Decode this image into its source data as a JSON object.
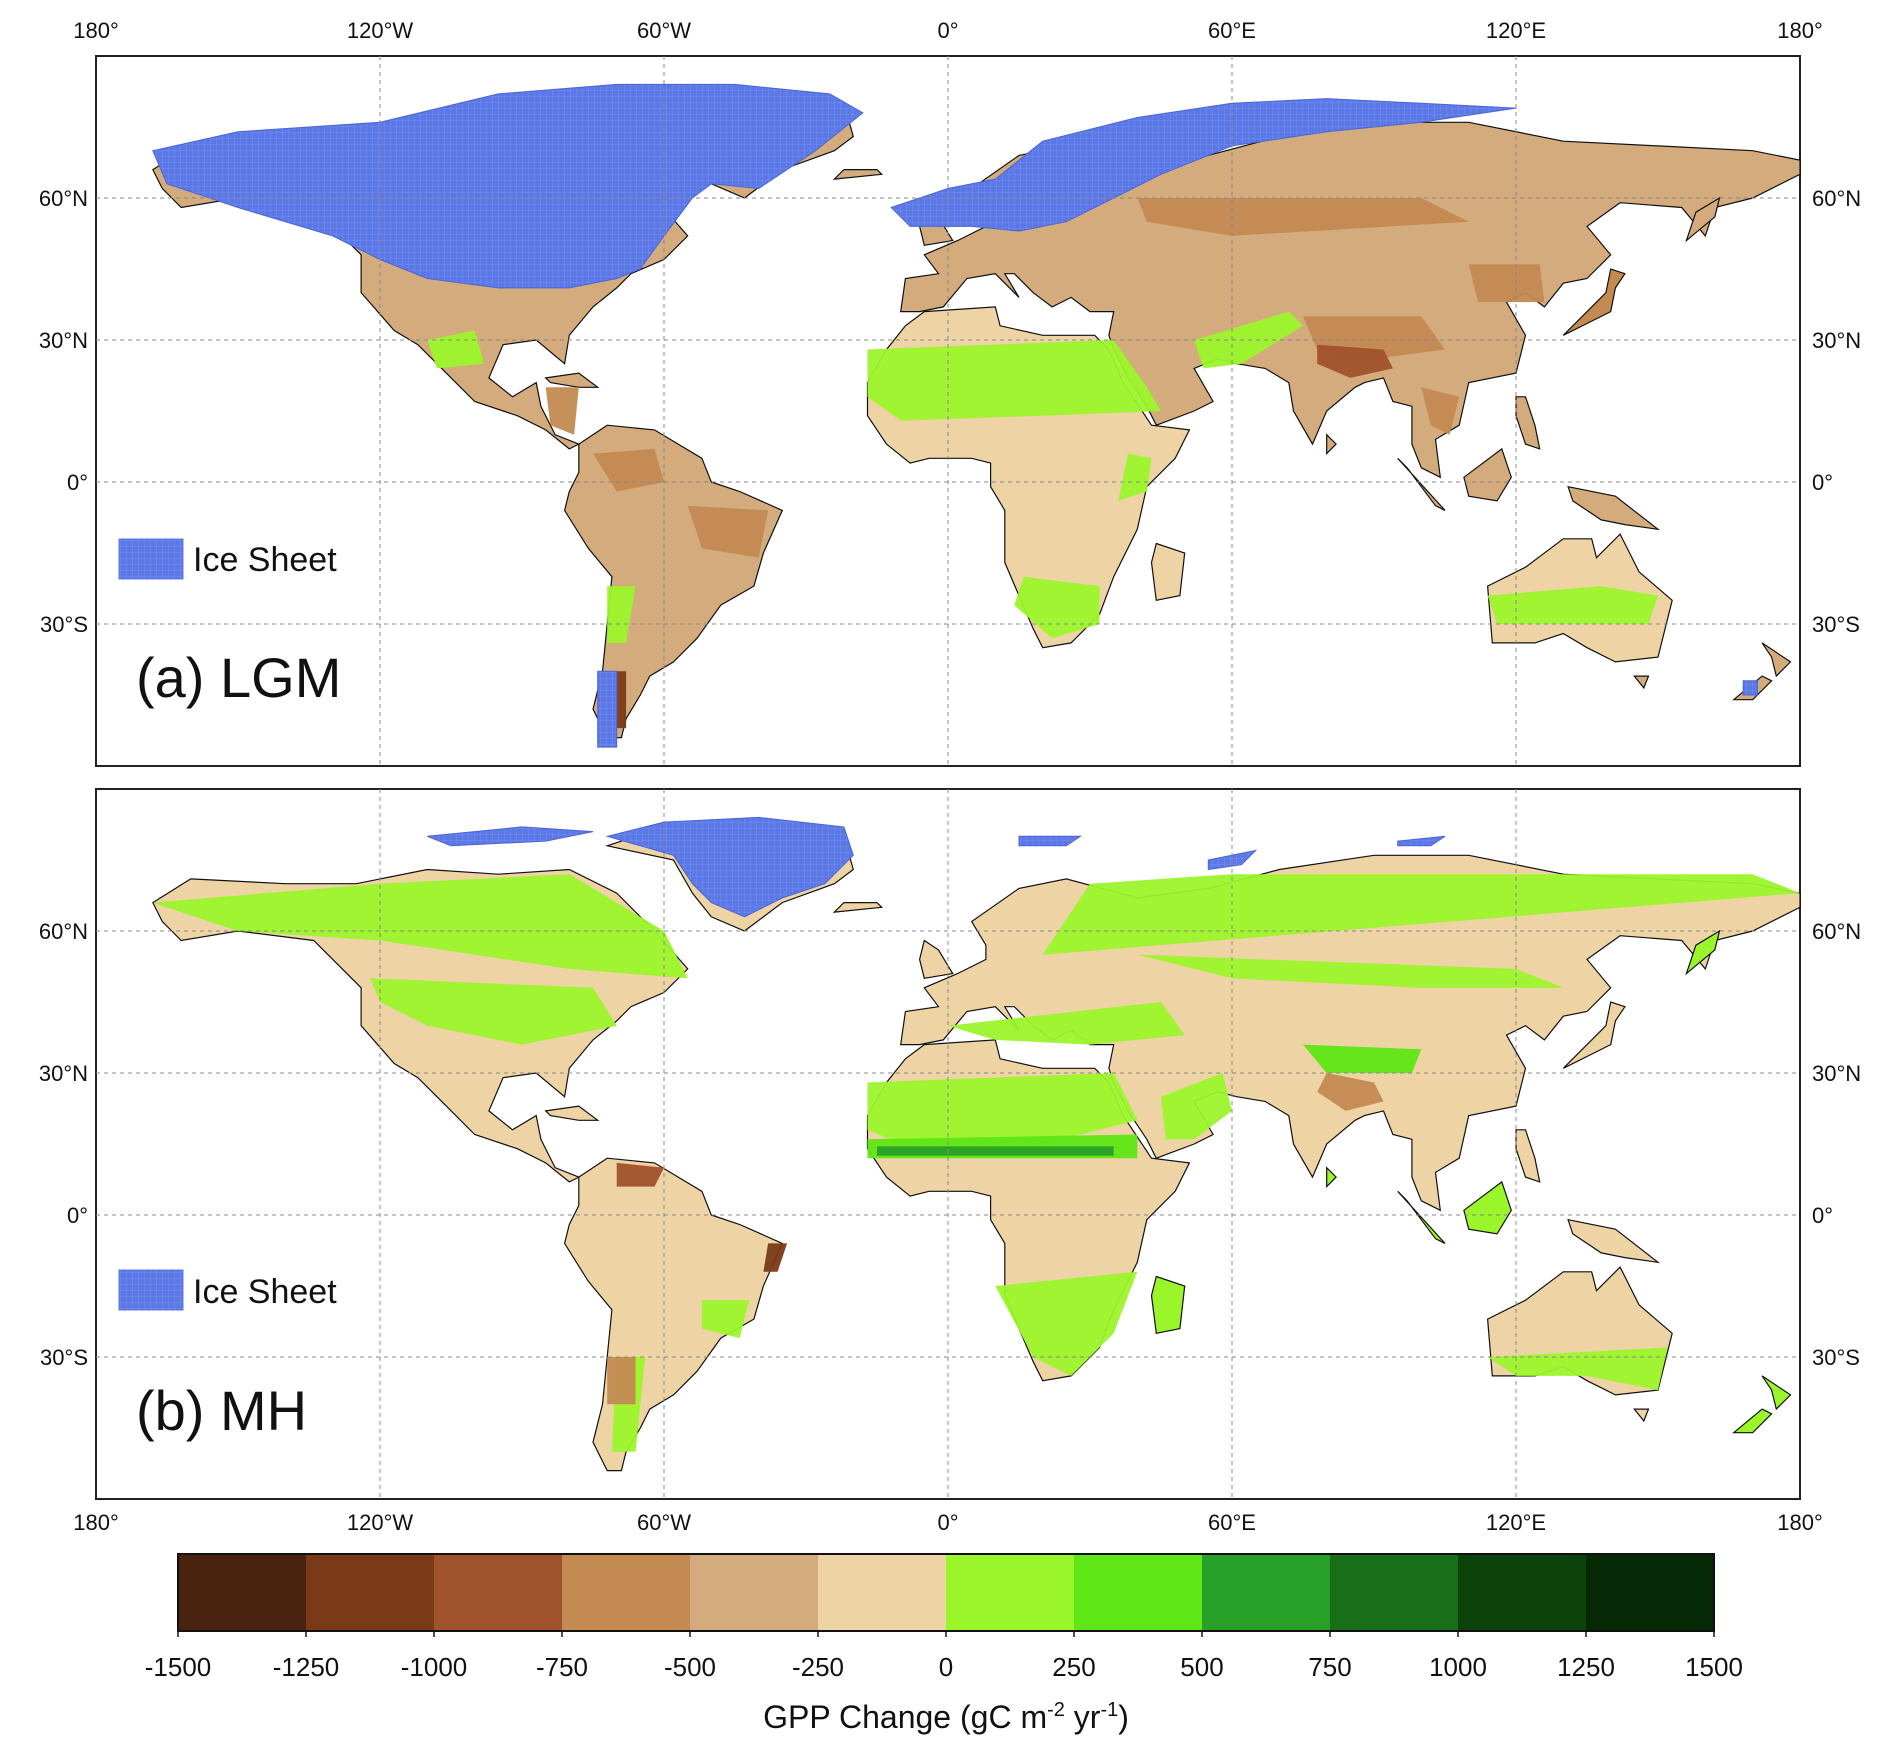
{
  "map_data": {
    "type": "choropleth",
    "projection": "equirectangular",
    "extent": {
      "lon": [
        -180,
        180
      ],
      "lat": [
        -60,
        90
      ]
    },
    "lon_ticks": [
      {
        "lon": -180,
        "label": "180°"
      },
      {
        "lon": -120,
        "label": "120°W"
      },
      {
        "lon": -60,
        "label": "60°W"
      },
      {
        "lon": 0,
        "label": "0°"
      },
      {
        "lon": 60,
        "label": "60°E"
      },
      {
        "lon": 120,
        "label": "120°E"
      },
      {
        "lon": 180,
        "label": "180°"
      }
    ],
    "lat_ticks": [
      {
        "lat": 60,
        "label": "60°N"
      },
      {
        "lat": 30,
        "label": "30°N"
      },
      {
        "lat": 0,
        "label": "0°"
      },
      {
        "lat": -30,
        "label": "30°S"
      }
    ],
    "gridlines": true,
    "ice_color": "#5b78e6",
    "panels": [
      {
        "id": "a",
        "label": "(a) LGM",
        "legend_label": "Ice Sheet",
        "dominant_class": "reduction",
        "ice_extent": "large"
      },
      {
        "id": "b",
        "label": "(b) MH",
        "legend_label": "Ice Sheet",
        "dominant_class": "increase",
        "ice_extent": "small"
      }
    ],
    "colorbar": {
      "title": "GPP Change (gC m-2 yr-1)",
      "title_main": "GPP Change (gC m",
      "title_sup1": "-2",
      "title_mid": " yr",
      "title_sup2": "-1",
      "title_end": ")",
      "ticks": [
        "-1500",
        "-1250",
        "-1000",
        "-750",
        "-500",
        "-250",
        "0",
        "250",
        "500",
        "750",
        "1000",
        "1250",
        "1500"
      ],
      "colors": [
        "#4a2310",
        "#7a3a17",
        "#a0522d",
        "#c38a52",
        "#d3ab7c",
        "#eed3a4",
        "#9bf52b",
        "#5ee616",
        "#28a028",
        "#196e19",
        "#0b430b",
        "#052805"
      ]
    }
  }
}
